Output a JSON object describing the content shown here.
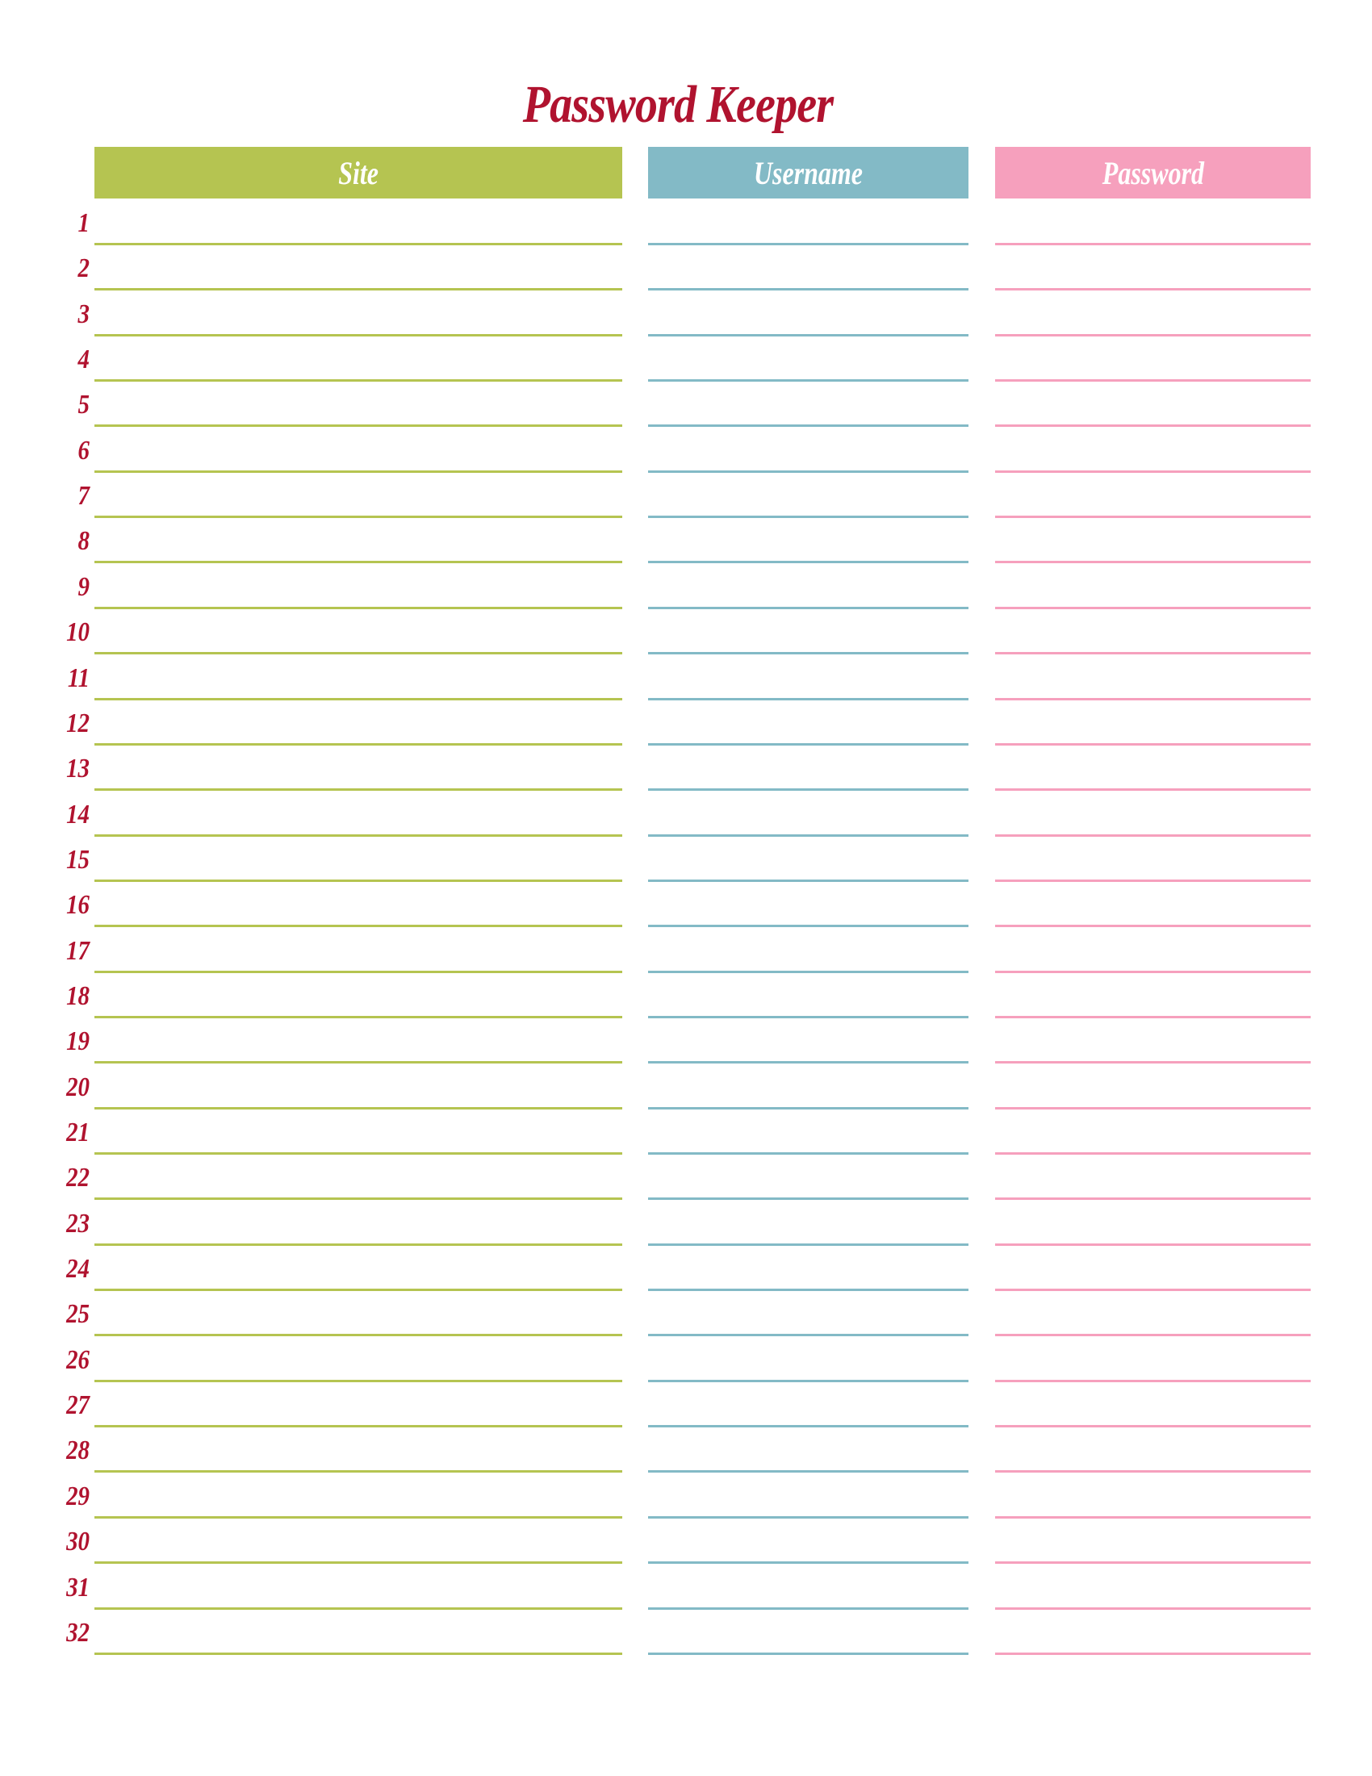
{
  "title": "Password Keeper",
  "columns": [
    {
      "label": "Site",
      "color": "#b5c451"
    },
    {
      "label": "Username",
      "color": "#83bac6"
    },
    {
      "label": "Password",
      "color": "#f6a0bd"
    }
  ],
  "title_color": "#b0132f",
  "rows": [
    "1",
    "2",
    "3",
    "4",
    "5",
    "6",
    "7",
    "8",
    "9",
    "10",
    "11",
    "12",
    "13",
    "14",
    "15",
    "16",
    "17",
    "18",
    "19",
    "20",
    "21",
    "22",
    "23",
    "24",
    "25",
    "26",
    "27",
    "28",
    "29",
    "30",
    "31",
    "32"
  ]
}
